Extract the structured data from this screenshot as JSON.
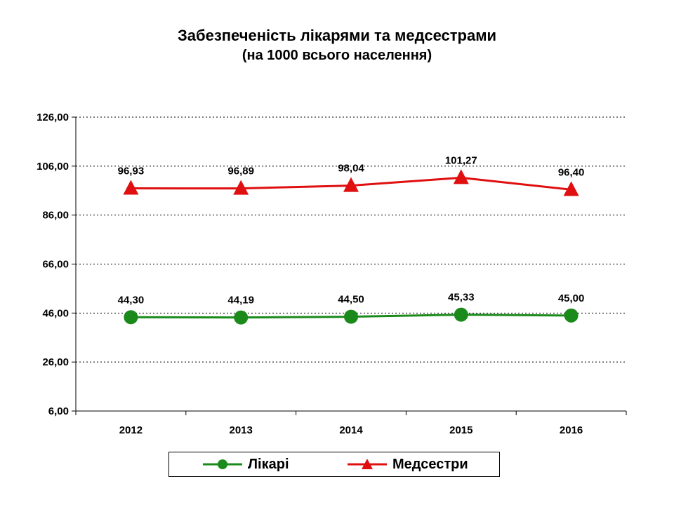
{
  "chart_data": {
    "type": "line",
    "title": "Забезпеченість лікарями та медсестрами",
    "subtitle": "(на 1000 всього населення)",
    "categories": [
      "2012",
      "2013",
      "2014",
      "2015",
      "2016"
    ],
    "ylim": [
      6,
      126
    ],
    "yticks": [
      "126,00",
      "106,00",
      "86,00",
      "66,00",
      "46,00",
      "26,00",
      "6,00"
    ],
    "ytick_values": [
      126,
      106,
      86,
      66,
      46,
      26,
      6
    ],
    "grid": true,
    "legend_position": "bottom",
    "series": [
      {
        "name": "Лікарі",
        "values": [
          44.3,
          44.19,
          44.5,
          45.33,
          45.0
        ],
        "labels": [
          "44,30",
          "44,19",
          "44,50",
          "45,33",
          "45,00"
        ],
        "color": "#1a8a1a",
        "marker": "circle"
      },
      {
        "name": "Медсестри",
        "values": [
          96.93,
          96.89,
          98.04,
          101.27,
          96.4
        ],
        "labels": [
          "96,93",
          "96,89",
          "98,04",
          "101,27",
          "96,40"
        ],
        "color": "#e01010",
        "marker": "triangle"
      }
    ]
  }
}
